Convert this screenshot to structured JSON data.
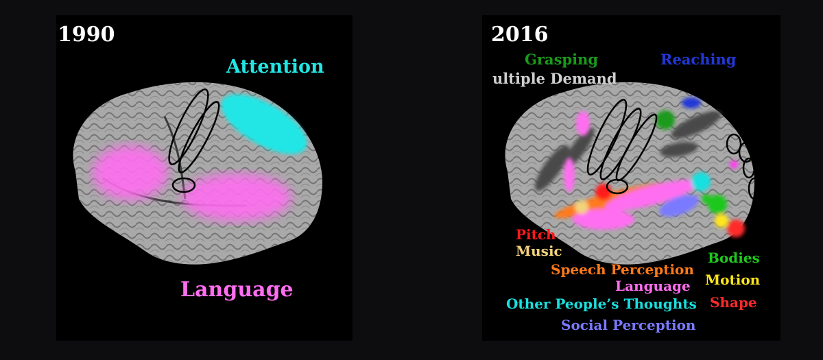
{
  "left_panel": {
    "year": "1990",
    "labels": {
      "attention": "Attention",
      "language": "Language"
    }
  },
  "right_panel": {
    "year": "2016",
    "labels": {
      "grasping": "Grasping",
      "reaching": "Reaching",
      "multiple_demand": "ultiple Demand",
      "pitch": "Pitch",
      "music": "Music",
      "speech_perception": "Speech Perception",
      "language": "Language",
      "other_thoughts": "Other People’s Thoughts",
      "social_perception": "Social Perception",
      "bodies": "Bodies",
      "motion": "Motion",
      "shape": "Shape"
    }
  },
  "colors": {
    "attention": "#22e6e6",
    "language": "#ff6ef0",
    "grasping": "#1a9a1a",
    "reaching": "#2238d8",
    "multiple_demand": "#cfcfcf",
    "pitch": "#ff1a1a",
    "music": "#f3d27a",
    "speech_perception": "#ff7a1a",
    "other_thoughts": "#19e0e0",
    "social_perception": "#7a7aff",
    "bodies": "#1ec81e",
    "motion": "#ffe51a",
    "shape": "#ff2a2a"
  }
}
